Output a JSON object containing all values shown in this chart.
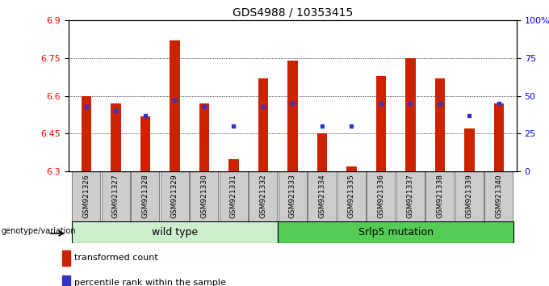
{
  "title": "GDS4988 / 10353415",
  "samples": [
    "GSM921326",
    "GSM921327",
    "GSM921328",
    "GSM921329",
    "GSM921330",
    "GSM921331",
    "GSM921332",
    "GSM921333",
    "GSM921334",
    "GSM921335",
    "GSM921336",
    "GSM921337",
    "GSM921338",
    "GSM921339",
    "GSM921340"
  ],
  "red_values": [
    6.6,
    6.57,
    6.52,
    6.82,
    6.57,
    6.35,
    6.67,
    6.74,
    6.45,
    6.32,
    6.68,
    6.75,
    6.67,
    6.47,
    6.57
  ],
  "blue_percentiles": [
    43,
    40,
    37,
    47,
    43,
    30,
    43,
    45,
    30,
    30,
    45,
    45,
    45,
    37,
    45
  ],
  "ymin": 6.3,
  "ymax": 6.9,
  "y_ticks": [
    6.3,
    6.45,
    6.6,
    6.75,
    6.9
  ],
  "y_tick_labels": [
    "6.3",
    "6.45",
    "6.6",
    "6.75",
    "6.9"
  ],
  "right_y_ticks": [
    0,
    25,
    50,
    75,
    100
  ],
  "right_y_labels": [
    "0",
    "25",
    "50",
    "75",
    "100%"
  ],
  "bar_color": "#cc2200",
  "dot_color": "#3333cc",
  "bg_color": "#ffffff",
  "plot_bg": "#ffffff",
  "wild_type_indices": [
    0,
    1,
    2,
    3,
    4,
    5,
    6
  ],
  "mutation_indices": [
    7,
    8,
    9,
    10,
    11,
    12,
    13,
    14
  ],
  "wild_type_label": "wild type",
  "mutation_label": "Srlp5 mutation",
  "genotype_label": "genotype/variation",
  "legend_red_label": "transformed count",
  "legend_blue_label": "percentile rank within the sample",
  "bar_width": 0.35,
  "base_value": 6.3,
  "wt_color": "#cceecc",
  "mut_color": "#55cc55",
  "label_bg": "#cccccc"
}
